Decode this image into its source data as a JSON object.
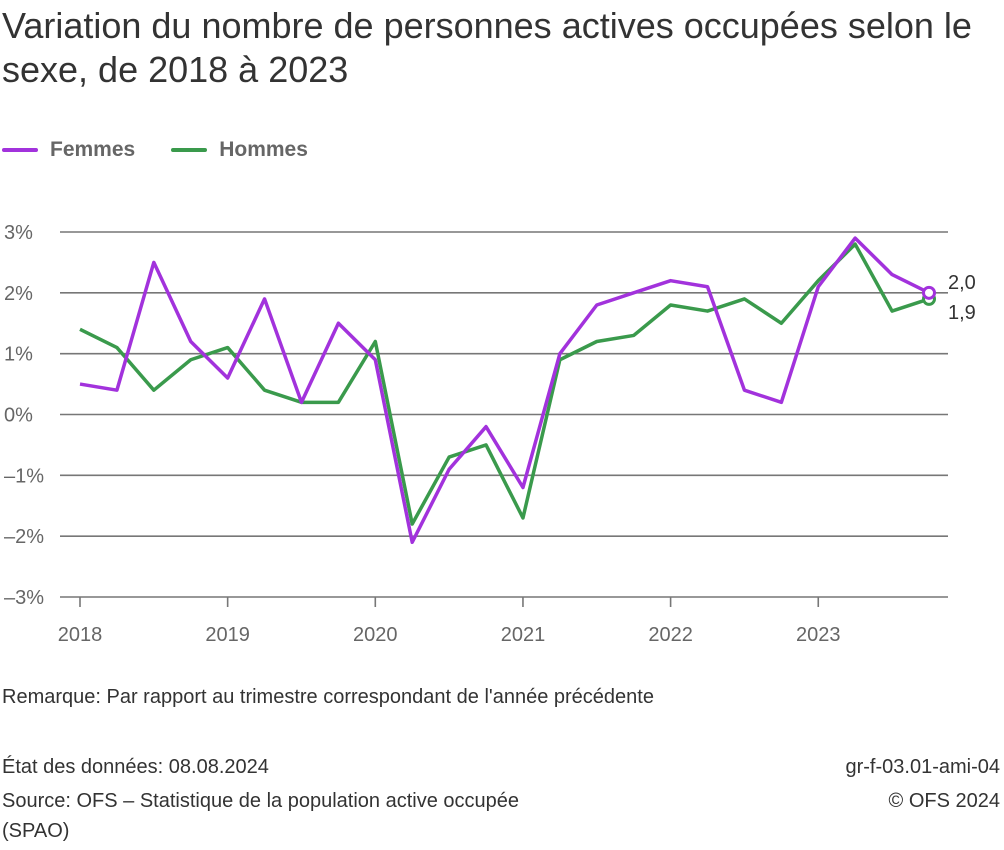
{
  "title": "Variation du nombre de personnes actives occupées selon le sexe, de 2018 à 2023",
  "colors": {
    "Femmes": "#a232dc",
    "Hommes": "#3a9a4c"
  },
  "chart_data": {
    "type": "line",
    "title": "Variation du nombre de personnes actives occupées selon le sexe, de 2018 à 2023",
    "xlabel": "",
    "ylabel": "",
    "x_tick_labels": [
      "2018",
      "2019",
      "2020",
      "2021",
      "2022",
      "2023"
    ],
    "y_tick_labels": [
      "3%",
      "2%",
      "1%",
      "0%",
      "–1%",
      "–2%",
      "–3%"
    ],
    "y_ticks": [
      3,
      2,
      1,
      0,
      -1,
      -2,
      -3
    ],
    "ylim": [
      -3,
      3
    ],
    "x": [
      "2018Q1",
      "2018Q2",
      "2018Q3",
      "2018Q4",
      "2019Q1",
      "2019Q2",
      "2019Q3",
      "2019Q4",
      "2020Q1",
      "2020Q2",
      "2020Q3",
      "2020Q4",
      "2021Q1",
      "2021Q2",
      "2021Q3",
      "2021Q4",
      "2022Q1",
      "2022Q2",
      "2022Q3",
      "2022Q4",
      "2023Q1",
      "2023Q2",
      "2023Q3",
      "2023Q4"
    ],
    "series": [
      {
        "name": "Femmes",
        "values": [
          0.5,
          0.4,
          2.5,
          1.2,
          0.6,
          1.9,
          0.2,
          1.5,
          0.9,
          -2.1,
          -0.9,
          -0.2,
          -1.2,
          1.0,
          1.8,
          2.0,
          2.2,
          2.1,
          0.4,
          0.2,
          2.1,
          2.9,
          2.3,
          2.0
        ],
        "end_label": "2,0"
      },
      {
        "name": "Hommes",
        "values": [
          1.4,
          1.1,
          0.4,
          0.9,
          1.1,
          0.4,
          0.2,
          0.2,
          1.2,
          -1.8,
          -0.7,
          -0.5,
          -1.7,
          0.9,
          1.2,
          1.3,
          1.8,
          1.7,
          1.9,
          1.5,
          2.2,
          2.8,
          1.7,
          1.9
        ],
        "end_label": "1,9"
      }
    ],
    "grid": true,
    "legend": "top-left"
  },
  "remark": "Remarque: Par rapport au trimestre correspondant de l'année précédente",
  "data_state": "État des données: 08.08.2024",
  "source_line1": "Source: OFS – Statistique de la population active occupée",
  "source_line2": "(SPAO)",
  "code": "gr-f-03.01-ami-04",
  "copyright": "© OFS 2024"
}
